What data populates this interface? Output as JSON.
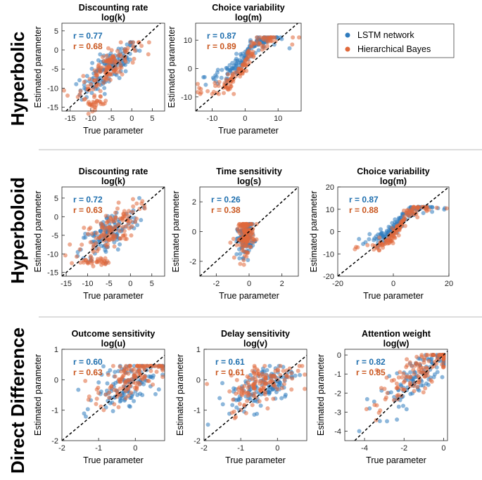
{
  "legend": {
    "entries": [
      {
        "label": "LSTM network",
        "color": "#2f7bbd"
      },
      {
        "label": "Hierarchical Bayes",
        "color": "#e0683a"
      }
    ]
  },
  "colors": {
    "lstm": "#2f7bbd",
    "hb": "#e0683a",
    "r_lstm": "#1f6fae",
    "r_hb": "#c9561e"
  },
  "rows": [
    {
      "label": "Hyperbolic"
    },
    {
      "label": "Hyperboloid"
    },
    {
      "label": "Direct Difference"
    }
  ],
  "chart_data": [
    {
      "type": "scatter",
      "row": 0,
      "title": "Discounting rate",
      "subtitle": "log(k)",
      "xlabel": "True parameter",
      "ylabel": "Estimated parameter",
      "xlim": [
        -17,
        8
      ],
      "ylim": [
        -16,
        7
      ],
      "xticks": [
        -15,
        -10,
        -5,
        0,
        5
      ],
      "yticks": [
        -15,
        -10,
        -5,
        0,
        5
      ],
      "r_lstm": "r = 0.77",
      "r_hb": "r = 0.68",
      "cloud": {
        "xc": -5.5,
        "xs": 3.5,
        "slope": 0.8,
        "icpt": -0.5,
        "noise": 2.2,
        "clamp": [
          -13,
          2
        ],
        "hb_cluster": [
          -9,
          -14,
          1.5,
          0.8
        ]
      }
    },
    {
      "type": "scatter",
      "row": 0,
      "title": "Choice variability",
      "subtitle": "log(m)",
      "xlabel": "True parameter",
      "ylabel": "Estimated parameter",
      "xlim": [
        -15,
        17
      ],
      "ylim": [
        -15,
        16
      ],
      "xticks": [
        -10,
        0,
        10
      ],
      "yticks": [
        -10,
        0,
        10
      ],
      "r_lstm": "r = 0.87",
      "r_hb": "r = 0.89",
      "cloud": {
        "xc": 0,
        "xs": 6,
        "slope": 0.9,
        "icpt": 0,
        "noise": 2.5,
        "clamp": [
          -9,
          11
        ],
        "sigmoid": true
      }
    },
    {
      "type": "scatter",
      "row": 1,
      "title": "Discounting rate",
      "subtitle": "log(k)",
      "xlabel": "True parameter",
      "ylabel": "Estimated parameter",
      "xlim": [
        -16,
        8
      ],
      "ylim": [
        -16,
        8
      ],
      "xticks": [
        -15,
        -10,
        -5,
        0,
        5
      ],
      "yticks": [
        -15,
        -10,
        -5,
        0,
        5
      ],
      "r_lstm": "r = 0.72",
      "r_hb": "r = 0.63",
      "cloud": {
        "xc": -5,
        "xs": 3.5,
        "slope": 0.7,
        "icpt": -1,
        "noise": 2.6,
        "clamp": [
          -12.5,
          5
        ],
        "hb_cluster": [
          -8,
          -12,
          1.5,
          0.6
        ]
      }
    },
    {
      "type": "scatter",
      "row": 1,
      "title": "Time sensitivity",
      "subtitle": "log(s)",
      "xlabel": "True parameter",
      "ylabel": "Estimated parameter",
      "xlim": [
        -3,
        3
      ],
      "ylim": [
        -3,
        3
      ],
      "xticks": [
        -2,
        0,
        2
      ],
      "yticks": [
        -2,
        0,
        2
      ],
      "r_lstm": "r = 0.26",
      "r_hb": "r = 0.38",
      "cloud": {
        "xc": -0.2,
        "xs": 0.25,
        "slope": 0.6,
        "icpt": -0.3,
        "noise": 0.6,
        "clamp": [
          -2.3,
          0.5
        ]
      }
    },
    {
      "type": "scatter",
      "row": 1,
      "title": "Choice variability",
      "subtitle": "log(m)",
      "xlabel": "True parameter",
      "ylabel": "Estimated parameter",
      "xlim": [
        -20,
        20
      ],
      "ylim": [
        -20,
        20
      ],
      "xticks": [
        -20,
        0,
        20
      ],
      "yticks": [
        -20,
        -10,
        0,
        10,
        20
      ],
      "r_lstm": "r = 0.87",
      "r_hb": "r = 0.88",
      "cloud": {
        "xc": 2,
        "xs": 6,
        "slope": 0.9,
        "icpt": 0,
        "noise": 2.5,
        "clamp": [
          -9,
          11
        ],
        "sigmoid": true
      }
    },
    {
      "type": "scatter",
      "row": 2,
      "title": "Outcome sensitivity",
      "subtitle": "log(u)",
      "xlabel": "True parameter",
      "ylabel": "Estimated parameter",
      "xlim": [
        -2,
        0.8
      ],
      "ylim": [
        -2,
        1
      ],
      "xticks": [
        -2,
        -1,
        0
      ],
      "yticks": [
        -2,
        -1,
        0,
        1
      ],
      "r_lstm": "r = 0.60",
      "r_hb": "r = 0.63",
      "cloud": {
        "xc": -0.2,
        "xs": 0.45,
        "slope": 0.5,
        "icpt": 0,
        "noise": 0.35,
        "clamp": [
          -1.8,
          0.45
        ]
      }
    },
    {
      "type": "scatter",
      "row": 2,
      "title": "Delay sensitivity",
      "subtitle": "log(v)",
      "xlabel": "True parameter",
      "ylabel": "Estimated parameter",
      "xlim": [
        -2,
        0.8
      ],
      "ylim": [
        -2,
        1
      ],
      "xticks": [
        -2,
        -1,
        0
      ],
      "yticks": [
        -2,
        -1,
        0,
        1
      ],
      "r_lstm": "r = 0.61",
      "r_hb": "r = 0.61",
      "cloud": {
        "xc": -0.4,
        "xs": 0.45,
        "slope": 0.5,
        "icpt": 0,
        "noise": 0.35,
        "clamp": [
          -1.9,
          0.45
        ]
      }
    },
    {
      "type": "scatter",
      "row": 2,
      "title": "Attention weight",
      "subtitle": "log(w)",
      "xlabel": "True parameter",
      "ylabel": "Estimated parameter",
      "xlim": [
        -5,
        0.2
      ],
      "ylim": [
        -4.5,
        0.3
      ],
      "xticks": [
        -4,
        -2,
        0
      ],
      "yticks": [
        -4,
        -3,
        -2,
        -1,
        0
      ],
      "r_lstm": "r = 0.82",
      "r_hb": "r = 0.85",
      "cloud": {
        "xc": -1.2,
        "xs": 1.1,
        "slope": 0.8,
        "icpt": 0,
        "noise": 0.5,
        "clamp": [
          -4,
          0
        ],
        "xmax": 0
      }
    }
  ]
}
